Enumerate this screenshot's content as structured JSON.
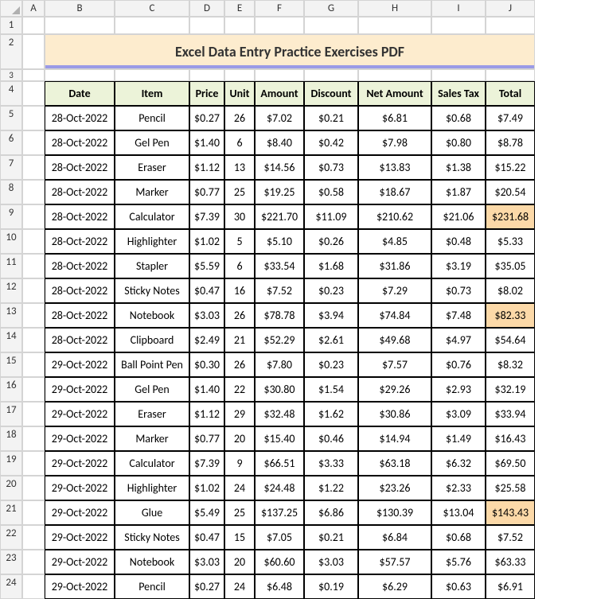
{
  "columns": [
    "A",
    "B",
    "C",
    "D",
    "E",
    "F",
    "G",
    "H",
    "I",
    "J"
  ],
  "rowNumbers": [
    "1",
    "2",
    "3",
    "4",
    "5",
    "6",
    "7",
    "8",
    "9",
    "10",
    "11",
    "12",
    "13",
    "14",
    "15",
    "16",
    "17",
    "18",
    "19",
    "20",
    "21",
    "22",
    "23",
    "24"
  ],
  "title": "Excel Data Entry Practice Exercises PDF",
  "headers": [
    "Date",
    "Item",
    "Price",
    "Unit",
    "Amount",
    "Discount",
    "Net Amount",
    "Sales Tax",
    "Total"
  ],
  "rows": [
    {
      "date": "28-Oct-2022",
      "item": "Pencil",
      "price": "$0.27",
      "unit": "26",
      "amount": "$7.02",
      "discount": "$0.21",
      "net": "$6.81",
      "tax": "$0.68",
      "total": "$7.49",
      "hl": false
    },
    {
      "date": "28-Oct-2022",
      "item": "Gel Pen",
      "price": "$1.40",
      "unit": "6",
      "amount": "$8.40",
      "discount": "$0.42",
      "net": "$7.98",
      "tax": "$0.80",
      "total": "$8.78",
      "hl": false
    },
    {
      "date": "28-Oct-2022",
      "item": "Eraser",
      "price": "$1.12",
      "unit": "13",
      "amount": "$14.56",
      "discount": "$0.73",
      "net": "$13.83",
      "tax": "$1.38",
      "total": "$15.22",
      "hl": false
    },
    {
      "date": "28-Oct-2022",
      "item": "Marker",
      "price": "$0.77",
      "unit": "25",
      "amount": "$19.25",
      "discount": "$0.58",
      "net": "$18.67",
      "tax": "$1.87",
      "total": "$20.54",
      "hl": false
    },
    {
      "date": "28-Oct-2022",
      "item": "Calculator",
      "price": "$7.39",
      "unit": "30",
      "amount": "$221.70",
      "discount": "$11.09",
      "net": "$210.62",
      "tax": "$21.06",
      "total": "$231.68",
      "hl": true
    },
    {
      "date": "28-Oct-2022",
      "item": "Highlighter",
      "price": "$1.02",
      "unit": "5",
      "amount": "$5.10",
      "discount": "$0.26",
      "net": "$4.85",
      "tax": "$0.48",
      "total": "$5.33",
      "hl": false
    },
    {
      "date": "28-Oct-2022",
      "item": "Stapler",
      "price": "$5.59",
      "unit": "6",
      "amount": "$33.54",
      "discount": "$1.68",
      "net": "$31.86",
      "tax": "$3.19",
      "total": "$35.05",
      "hl": false
    },
    {
      "date": "28-Oct-2022",
      "item": "Sticky Notes",
      "price": "$0.47",
      "unit": "16",
      "amount": "$7.52",
      "discount": "$0.23",
      "net": "$7.29",
      "tax": "$0.73",
      "total": "$8.02",
      "hl": false
    },
    {
      "date": "28-Oct-2022",
      "item": "Notebook",
      "price": "$3.03",
      "unit": "26",
      "amount": "$78.78",
      "discount": "$3.94",
      "net": "$74.84",
      "tax": "$7.48",
      "total": "$82.33",
      "hl": true
    },
    {
      "date": "28-Oct-2022",
      "item": "Clipboard",
      "price": "$2.49",
      "unit": "21",
      "amount": "$52.29",
      "discount": "$2.61",
      "net": "$49.68",
      "tax": "$4.97",
      "total": "$54.64",
      "hl": false
    },
    {
      "date": "29-Oct-2022",
      "item": "Ball Point Pen",
      "price": "$0.30",
      "unit": "26",
      "amount": "$7.80",
      "discount": "$0.23",
      "net": "$7.57",
      "tax": "$0.76",
      "total": "$8.32",
      "hl": false
    },
    {
      "date": "29-Oct-2022",
      "item": "Gel Pen",
      "price": "$1.40",
      "unit": "22",
      "amount": "$30.80",
      "discount": "$1.54",
      "net": "$29.26",
      "tax": "$2.93",
      "total": "$32.19",
      "hl": false
    },
    {
      "date": "29-Oct-2022",
      "item": "Eraser",
      "price": "$1.12",
      "unit": "29",
      "amount": "$32.48",
      "discount": "$1.62",
      "net": "$30.86",
      "tax": "$3.09",
      "total": "$33.94",
      "hl": false
    },
    {
      "date": "29-Oct-2022",
      "item": "Marker",
      "price": "$0.77",
      "unit": "20",
      "amount": "$15.40",
      "discount": "$0.46",
      "net": "$14.94",
      "tax": "$1.49",
      "total": "$16.43",
      "hl": false
    },
    {
      "date": "29-Oct-2022",
      "item": "Calculator",
      "price": "$7.39",
      "unit": "9",
      "amount": "$66.51",
      "discount": "$3.33",
      "net": "$63.18",
      "tax": "$6.32",
      "total": "$69.50",
      "hl": false
    },
    {
      "date": "29-Oct-2022",
      "item": "Highlighter",
      "price": "$1.02",
      "unit": "24",
      "amount": "$24.48",
      "discount": "$1.22",
      "net": "$23.26",
      "tax": "$2.33",
      "total": "$25.58",
      "hl": false
    },
    {
      "date": "29-Oct-2022",
      "item": "Glue",
      "price": "$5.49",
      "unit": "25",
      "amount": "$137.25",
      "discount": "$6.86",
      "net": "$130.39",
      "tax": "$13.04",
      "total": "$143.43",
      "hl": true
    },
    {
      "date": "29-Oct-2022",
      "item": "Sticky Notes",
      "price": "$0.47",
      "unit": "15",
      "amount": "$7.05",
      "discount": "$0.21",
      "net": "$6.84",
      "tax": "$0.68",
      "total": "$7.52",
      "hl": false
    },
    {
      "date": "29-Oct-2022",
      "item": "Notebook",
      "price": "$3.03",
      "unit": "20",
      "amount": "$60.60",
      "discount": "$3.03",
      "net": "$57.57",
      "tax": "$5.76",
      "total": "$63.33",
      "hl": false
    },
    {
      "date": "29-Oct-2022",
      "item": "Pencil",
      "price": "$0.27",
      "unit": "24",
      "amount": "$6.48",
      "discount": "$0.19",
      "net": "$6.29",
      "tax": "$0.63",
      "total": "$6.91",
      "hl": false
    }
  ]
}
